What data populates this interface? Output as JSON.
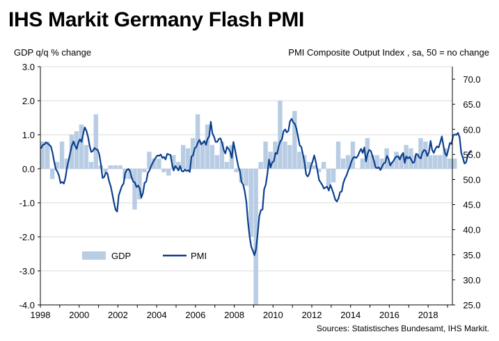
{
  "title": "IHS Markit Germany Flash PMI",
  "source": "Sources: Statistisches Bundesamt, IHS Markit.",
  "colors": {
    "gdp_bar": "#b8cce4",
    "pmi_line": "#0b3f8c",
    "grid": "#d9d9d9"
  },
  "chart_data": {
    "type": "bar+line",
    "ylabel_left": "GDP q/q % change",
    "ylabel_right": "PMI Composite  Output Index , sa, 50 = no change",
    "ylim_left": [
      -4.0,
      3.0
    ],
    "ylim_right": [
      25.0,
      72.5
    ],
    "yticks_left": [
      "3.0",
      "2.0",
      "1.0",
      "0.0",
      "-1.0",
      "-2.0",
      "-3.0",
      "-4.0"
    ],
    "yticks_right": [
      "70.0",
      "65.0",
      "60.0",
      "55.0",
      "50.0",
      "45.0",
      "40.0",
      "35.0",
      "30.0",
      "25.0"
    ],
    "xlim": [
      1998,
      2019.25
    ],
    "xticks": [
      "1998",
      "2000",
      "2002",
      "2004",
      "2006",
      "2008",
      "2010",
      "2012",
      "2014",
      "2016",
      "2018"
    ],
    "legend": {
      "position": "lower-left",
      "entries": [
        "GDP",
        "PMI"
      ]
    },
    "grid": true,
    "series": [
      {
        "name": "GDP",
        "kind": "bar",
        "axis": "left",
        "start": "1998Q1",
        "values": [
          0.8,
          0.8,
          -0.3,
          0.2,
          0.8,
          0.3,
          1.0,
          1.1,
          1.3,
          0.7,
          0.2,
          1.6,
          0.1,
          -0.1,
          0.1,
          0.1,
          0.1,
          -0.3,
          -0.3,
          -1.2,
          -0.9,
          -0.1,
          0.5,
          0.3,
          0.3,
          -0.1,
          -0.2,
          0.4,
          0.2,
          0.7,
          0.6,
          0.9,
          1.6,
          0.8,
          1.3,
          0.7,
          0.4,
          0.8,
          0.2,
          0.7,
          -0.1,
          -0.4,
          -0.5,
          -2.0,
          -4.0,
          0.2,
          0.8,
          0.5,
          0.8,
          2.0,
          0.8,
          0.7,
          1.7,
          0.5,
          0.4,
          0.2,
          0.1,
          -0.1,
          0.2,
          -0.5,
          -0.4,
          0.8,
          0.3,
          0.4,
          0.8,
          0.0,
          0.3,
          0.9,
          0.4,
          0.4,
          0.3,
          0.6,
          0.2,
          0.5,
          0.4,
          0.7,
          0.6,
          0.4,
          0.9,
          0.8,
          0.4,
          0.4,
          0.4,
          0.6,
          0.3,
          0.3
        ]
      },
      {
        "name": "PMI",
        "kind": "line",
        "axis": "right",
        "start": "1998M01",
        "values": [
          56.3,
          56.9,
          57.0,
          57.4,
          57.2,
          56.9,
          56.6,
          55.4,
          53.7,
          52.1,
          51.6,
          50.8,
          49.3,
          49.5,
          49.2,
          50.3,
          52.4,
          53.8,
          55.3,
          56.8,
          57.6,
          56.7,
          56.1,
          57.4,
          58.0,
          57.5,
          59.1,
          60.4,
          59.7,
          58.5,
          56.7,
          55.5,
          55.7,
          56.3,
          56.0,
          55.9,
          55.0,
          52.9,
          50.3,
          50.5,
          51.4,
          51.2,
          49.7,
          48.7,
          47.2,
          45.5,
          44.0,
          43.6,
          46.8,
          47.8,
          48.7,
          49.2,
          51.3,
          51.9,
          52.1,
          51.7,
          50.4,
          49.6,
          49.4,
          48.5,
          48.8,
          48.2,
          46.4,
          47.3,
          49.3,
          49.6,
          51.3,
          51.8,
          52.6,
          53.3,
          53.9,
          54.4,
          54.8,
          54.7,
          55.0,
          54.3,
          54.5,
          54.0,
          55.1,
          55.0,
          54.9,
          53.1,
          51.8,
          52.7,
          52.3,
          51.8,
          52.7,
          51.7,
          51.6,
          52.0,
          51.7,
          51.9,
          51.5,
          54.6,
          54.8,
          56.2,
          56.5,
          57.4,
          57.9,
          57.0,
          57.3,
          57.7,
          56.9,
          58.1,
          58.6,
          61.5,
          59.2,
          58.5,
          57.5,
          57.5,
          58.1,
          58.2,
          57.2,
          55.9,
          55.2,
          56.5,
          56.1,
          55.5,
          54.3,
          57.5,
          55.9,
          54.2,
          52.6,
          51.7,
          49.5,
          49.0,
          47.6,
          45.5,
          41.6,
          38.7,
          36.6,
          35.8,
          34.9,
          36.1,
          39.3,
          42.7,
          43.9,
          44.0,
          48.0,
          49.0,
          51.1,
          54.0,
          52.4,
          53.4,
          53.7,
          55.3,
          55.1,
          56.6,
          57.6,
          58.0,
          59.6,
          60.0,
          59.4,
          59.7,
          61.6,
          62.1,
          61.4,
          61.1,
          60.1,
          58.5,
          56.8,
          56.5,
          55.0,
          53.4,
          51.0,
          50.6,
          51.2,
          52.7,
          53.6,
          54.8,
          53.5,
          51.8,
          49.9,
          49.4,
          48.9,
          48.2,
          48.4,
          48.6,
          47.8,
          48.9,
          48.1,
          47.1,
          46.0,
          45.6,
          46.2,
          47.5,
          47.6,
          49.3,
          50.2,
          50.8,
          51.8,
          52.5,
          53.6,
          54.3,
          54.5,
          54.3,
          54.7,
          55.5,
          56.1,
          55.3,
          56.4,
          53.6,
          55.1,
          55.9,
          55.7,
          54.7,
          53.7,
          52.4,
          52.3,
          52.4,
          51.9,
          52.6,
          53.2,
          53.4,
          54.7,
          54.1,
          52.8,
          53.3,
          53.7,
          54.3,
          54.6,
          54.6,
          54.0,
          54.8,
          55.3,
          53.3,
          54.6,
          54.2,
          54.5,
          54.0,
          53.3,
          53.5,
          55.1,
          55.0,
          54.4,
          54.2,
          55.4,
          55.9,
          55.7,
          54.7,
          55.4,
          57.7,
          55.9,
          55.3,
          56.1,
          56.6,
          56.4,
          57.4,
          58.6,
          56.7,
          55.2,
          54.7,
          56.0,
          57.3,
          57.1,
          58.8,
          59.0,
          58.9,
          59.3,
          58.4,
          55.3,
          54.3,
          53.2,
          53.4,
          54.8,
          55.4,
          55.7
        ]
      }
    ]
  }
}
